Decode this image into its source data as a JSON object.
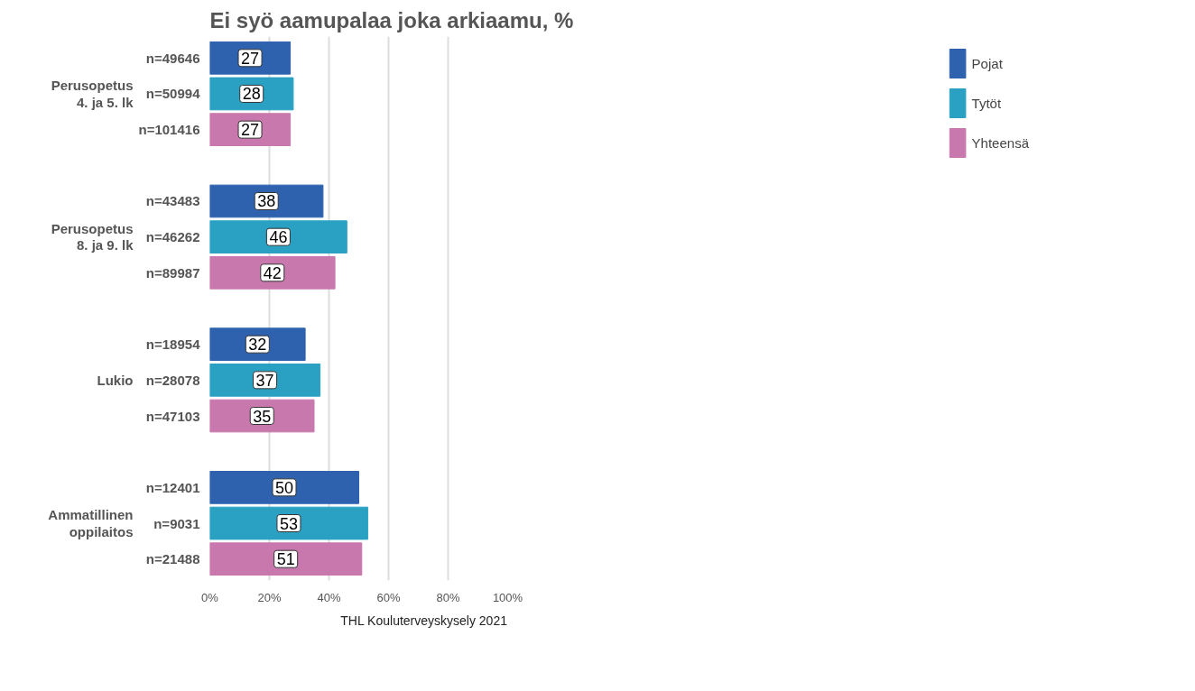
{
  "chart_data": {
    "type": "bar",
    "orientation": "horizontal",
    "title": "Ei syö aamupalaa joka arkiaamu, %",
    "categories": [
      "n=49646",
      "n=50994",
      "n=101416",
      "n=43483",
      "n=46262",
      "n=89987",
      "n=18954",
      "n=28078",
      "n=47103",
      "n=12401",
      "n=9031",
      "n=21488"
    ],
    "series": [
      {
        "name": "Pojat",
        "color": "#2e62ae",
        "values": [
          27,
          null,
          null,
          38,
          null,
          null,
          32,
          null,
          null,
          50,
          null,
          null
        ]
      },
      {
        "name": "Tytöt",
        "color": "#2aa1c3",
        "values": [
          null,
          28,
          null,
          null,
          46,
          null,
          null,
          37,
          null,
          null,
          53,
          null
        ]
      },
      {
        "name": "Yhteensä",
        "color": "#c978ad",
        "values": [
          null,
          null,
          27,
          null,
          null,
          42,
          null,
          null,
          35,
          null,
          null,
          51
        ]
      }
    ],
    "xlim": [
      0,
      100
    ],
    "xticks": [
      {
        "value": 0,
        "label": "0%"
      },
      {
        "value": 20,
        "label": "20%"
      },
      {
        "value": 40,
        "label": "40%"
      },
      {
        "value": 60,
        "label": "60%"
      },
      {
        "value": 80,
        "label": "80%"
      },
      {
        "value": 100,
        "label": "100%"
      }
    ],
    "grid": "x",
    "legend": "right",
    "data_labels": true,
    "annotations": [
      "Perusopetus\n4. ja 5. lk",
      "Perusopetus\n8. ja 9. lk",
      "Lukio",
      "Ammatillinen\noppilaitos",
      "THL Kouluterveyskysely 2021"
    ]
  }
}
